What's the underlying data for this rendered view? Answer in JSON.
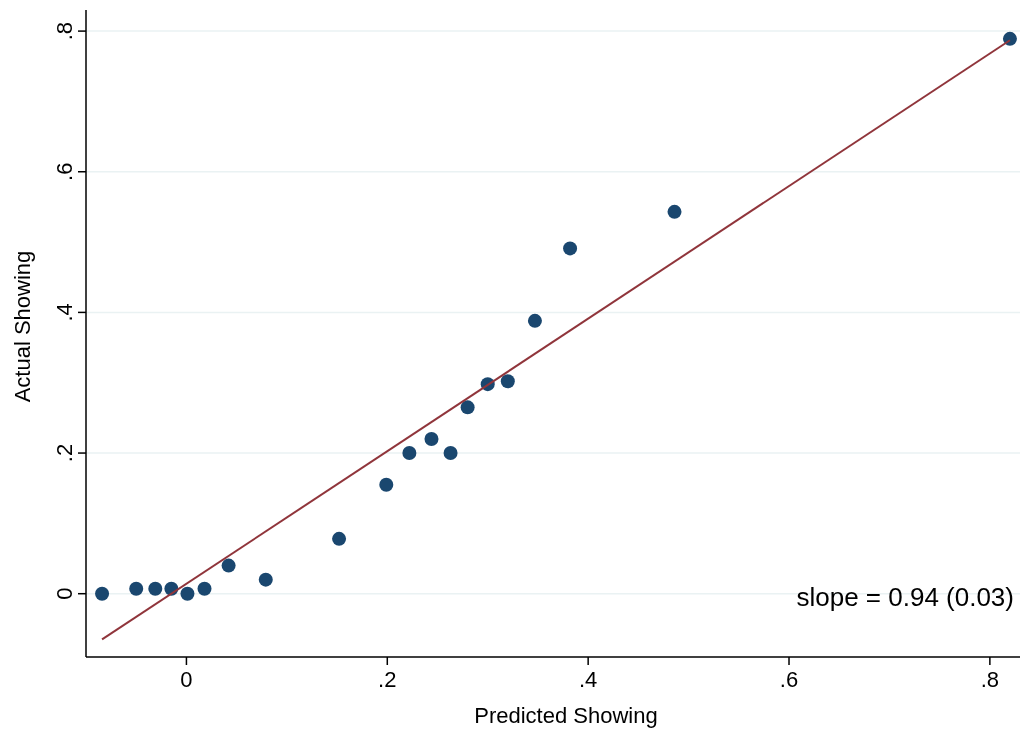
{
  "chart_data": {
    "type": "scatter",
    "xlabel": "Predicted Showing",
    "ylabel": "Actual Showing",
    "annotations": [
      "slope = 0.94 (0.03)"
    ],
    "xlim": [
      -0.1,
      0.83
    ],
    "ylim": [
      -0.09,
      0.83
    ],
    "xticks": [
      0,
      {
        "value": 0.2,
        "label": ".2"
      },
      {
        "value": 0.4,
        "label": ".4"
      },
      {
        "value": 0.6,
        "label": ".6"
      },
      {
        "value": 0.8,
        "label": ".8"
      }
    ],
    "yticks": [
      0,
      {
        "value": 0.2,
        "label": ".2"
      },
      {
        "value": 0.4,
        "label": ".4"
      },
      {
        "value": 0.6,
        "label": ".6"
      },
      {
        "value": 0.8,
        "label": ".8"
      }
    ],
    "grid": "y",
    "series": [
      {
        "marker": "circle",
        "color": "#1a476f",
        "x": [
          -0.084,
          -0.05,
          -0.031,
          -0.015,
          0.001,
          0.018,
          0.042,
          0.079,
          0.152,
          0.199,
          0.222,
          0.244,
          0.263,
          0.28,
          0.3,
          0.32,
          0.347,
          0.382,
          0.486,
          0.82
        ],
        "values": [
          0,
          0.007,
          0.007,
          0.007,
          0,
          0.007,
          0.04,
          0.02,
          0.078,
          0.155,
          0.2,
          0.22,
          0.2,
          0.265,
          0.298,
          0.302,
          0.388,
          0.491,
          0.543,
          0.789
        ]
      },
      {
        "type": "line",
        "color": "#90353b",
        "x": [
          -0.084,
          0.82
        ],
        "values": [
          -0.065,
          0.787
        ]
      }
    ]
  }
}
